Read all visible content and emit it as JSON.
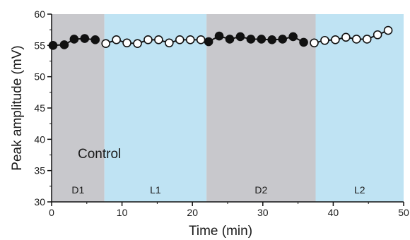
{
  "chart_data": {
    "type": "scatter",
    "title": "",
    "xlabel": "Time (min)",
    "ylabel": "Peak amplitude (mV)",
    "xlim": [
      0,
      50
    ],
    "ylim": [
      30,
      60
    ],
    "xticks": [
      0,
      10,
      20,
      30,
      40,
      50
    ],
    "yticks": [
      30,
      35,
      40,
      45,
      50,
      55,
      60
    ],
    "grid": false,
    "annotation": "Control",
    "regions": [
      {
        "label": "D1",
        "x_start": 0,
        "x_end": 7.5,
        "color": "#c8c8cc"
      },
      {
        "label": "L1",
        "x_start": 7.5,
        "x_end": 22,
        "color": "#bfe3f3"
      },
      {
        "label": "D2",
        "x_start": 22,
        "x_end": 37.5,
        "color": "#c8c8cc"
      },
      {
        "label": "L2",
        "x_start": 37.5,
        "x_end": 50,
        "color": "#bfe3f3"
      }
    ],
    "series": [
      {
        "marker": "filled",
        "color": "#111111",
        "segments": [
          [
            {
              "x": 0.2,
              "y": 55.0
            },
            {
              "x": 1.8,
              "y": 55.1
            },
            {
              "x": 3.2,
              "y": 56.0
            },
            {
              "x": 4.7,
              "y": 56.1
            },
            {
              "x": 6.2,
              "y": 55.9
            }
          ],
          [
            {
              "x": 22.3,
              "y": 55.6
            },
            {
              "x": 23.8,
              "y": 56.5
            },
            {
              "x": 25.3,
              "y": 56.0
            },
            {
              "x": 26.8,
              "y": 56.4
            },
            {
              "x": 28.3,
              "y": 56.0
            },
            {
              "x": 29.8,
              "y": 56.0
            },
            {
              "x": 31.3,
              "y": 55.9
            },
            {
              "x": 32.8,
              "y": 56.0
            },
            {
              "x": 34.3,
              "y": 56.4
            },
            {
              "x": 35.8,
              "y": 55.5
            }
          ]
        ]
      },
      {
        "marker": "open",
        "color": "#111111",
        "segments": [
          [
            {
              "x": 7.7,
              "y": 55.3
            },
            {
              "x": 9.2,
              "y": 55.9
            },
            {
              "x": 10.7,
              "y": 55.4
            },
            {
              "x": 12.2,
              "y": 55.3
            },
            {
              "x": 13.7,
              "y": 55.9
            },
            {
              "x": 15.2,
              "y": 55.9
            },
            {
              "x": 16.7,
              "y": 55.4
            },
            {
              "x": 18.2,
              "y": 55.9
            },
            {
              "x": 19.7,
              "y": 55.9
            },
            {
              "x": 21.2,
              "y": 55.9
            }
          ],
          [
            {
              "x": 37.3,
              "y": 55.4
            },
            {
              "x": 38.8,
              "y": 55.8
            },
            {
              "x": 40.3,
              "y": 55.9
            },
            {
              "x": 41.8,
              "y": 56.3
            },
            {
              "x": 43.3,
              "y": 56.0
            },
            {
              "x": 44.8,
              "y": 56.0
            },
            {
              "x": 46.3,
              "y": 56.7
            },
            {
              "x": 47.8,
              "y": 57.4
            }
          ]
        ]
      }
    ]
  }
}
